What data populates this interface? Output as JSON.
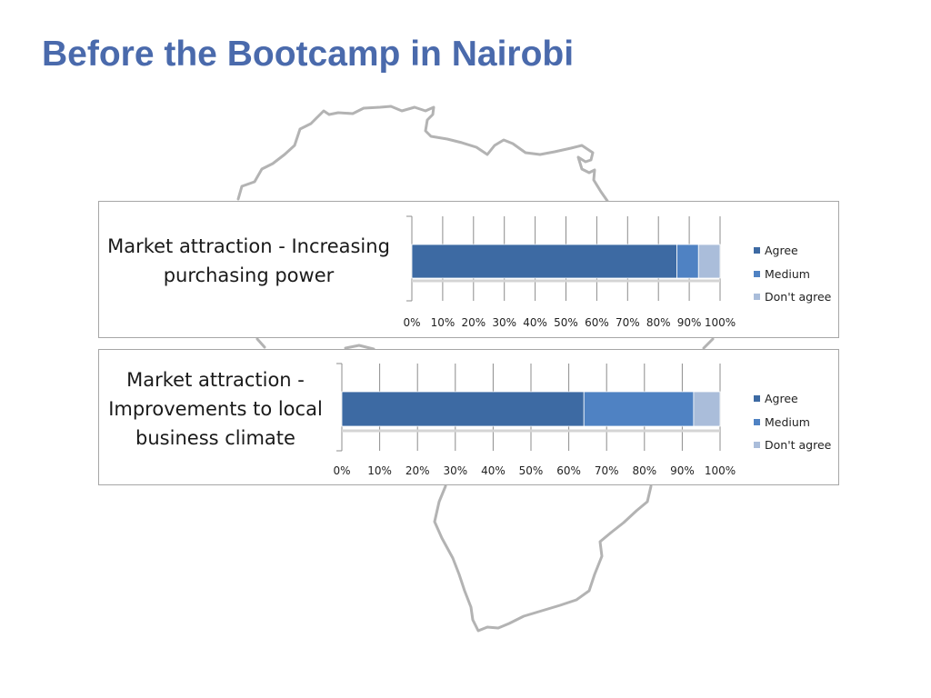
{
  "slide": {
    "title": "Before the Bootcamp in Nairobi"
  },
  "colors": {
    "title": "#4a6aac",
    "agree": "#3d6aa3",
    "medium": "#4f82c3",
    "dont_agree": "#aabdda",
    "map_outline": "#b3b3b3"
  },
  "background": {
    "icon": "africa-map-outline-icon"
  },
  "chart_data": [
    {
      "type": "bar",
      "orientation": "horizontal",
      "stacked": "percent",
      "title": "Market attraction - Increasing purchasing power",
      "title_lines": [
        "Market attraction - Increasing",
        "purchasing power"
      ],
      "series": [
        {
          "name": "Agree",
          "values": [
            86
          ]
        },
        {
          "name": "Medium",
          "values": [
            7
          ]
        },
        {
          "name": "Don't agree",
          "values": [
            7
          ]
        }
      ],
      "xlim": [
        0,
        100
      ],
      "xticks": [
        "0%",
        "10%",
        "20%",
        "30%",
        "40%",
        "50%",
        "60%",
        "70%",
        "80%",
        "90%",
        "100%"
      ],
      "grid": "vertical",
      "legend": "right"
    },
    {
      "type": "bar",
      "orientation": "horizontal",
      "stacked": "percent",
      "title": "Market attraction - Improvements to local business climate",
      "title_lines": [
        "Market attraction -",
        "Improvements to local",
        "business climate"
      ],
      "series": [
        {
          "name": "Agree",
          "values": [
            64
          ]
        },
        {
          "name": "Medium",
          "values": [
            29
          ]
        },
        {
          "name": "Don't agree",
          "values": [
            7
          ]
        }
      ],
      "xlim": [
        0,
        100
      ],
      "xticks": [
        "0%",
        "10%",
        "20%",
        "30%",
        "40%",
        "50%",
        "60%",
        "70%",
        "80%",
        "90%",
        "100%"
      ],
      "grid": "vertical",
      "legend": "right"
    }
  ]
}
